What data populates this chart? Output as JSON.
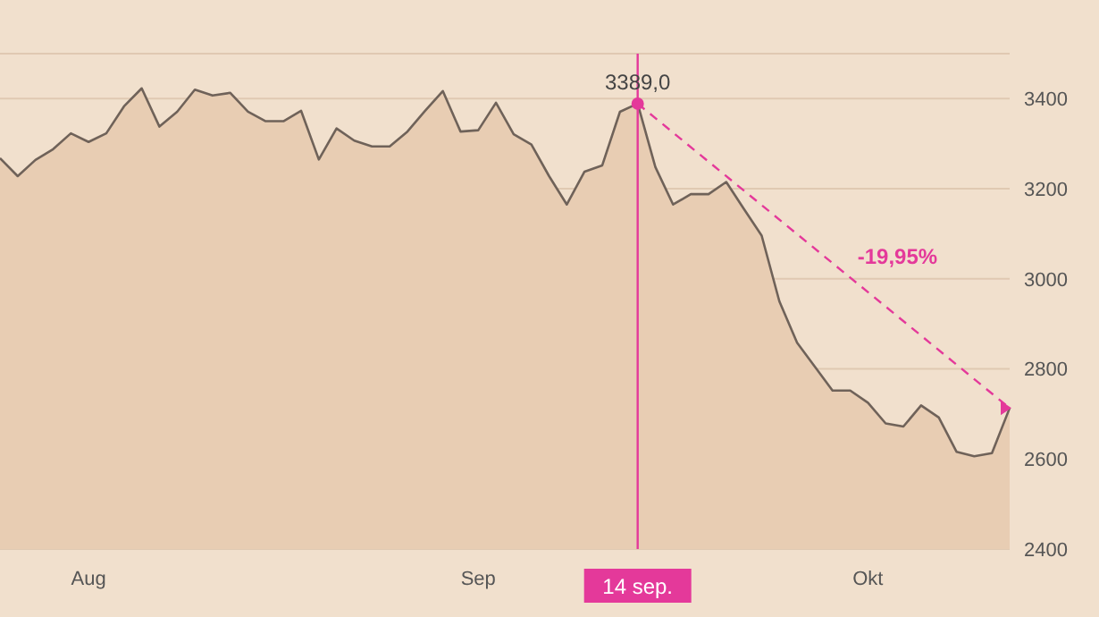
{
  "chart_data": {
    "type": "area",
    "categories": [
      null,
      null,
      null,
      null,
      null,
      "Aug",
      null,
      null,
      null,
      null,
      null,
      null,
      null,
      null,
      null,
      null,
      null,
      null,
      null,
      null,
      null,
      null,
      null,
      null,
      null,
      null,
      null,
      "Sep",
      null,
      null,
      null,
      null,
      null,
      null,
      null,
      null,
      "14 sep.",
      null,
      null,
      null,
      null,
      null,
      null,
      null,
      null,
      null,
      null,
      null,
      null,
      "Okt",
      null,
      null,
      null,
      null,
      null,
      null,
      null,
      null
    ],
    "series": [
      {
        "color": "#e8cdb3",
        "values": [
          3268,
          3228,
          3264,
          3288,
          3323,
          3304,
          3323,
          3383,
          3423,
          3338,
          3371,
          3420,
          3407,
          3413,
          3371,
          3350,
          3350,
          3373,
          3265,
          3334,
          3307,
          3294,
          3294,
          3327,
          3373,
          3417,
          3327,
          3330,
          3391,
          3321,
          3298,
          3228,
          3165,
          3238,
          3252,
          3371,
          3389,
          3248,
          3165,
          3188,
          3188,
          3215,
          3155,
          3096,
          2950,
          2858,
          2805,
          2752,
          2752,
          2725,
          2679,
          2672,
          2719,
          2692,
          2616,
          2606,
          2613,
          2713
        ]
      },
      {
        "type": "line",
        "color": "#e4399a",
        "line_style": "dashed",
        "marker": "circle",
        "values": [
          null,
          null,
          null,
          null,
          null,
          null,
          null,
          null,
          null,
          null,
          null,
          null,
          null,
          null,
          null,
          null,
          null,
          null,
          null,
          null,
          null,
          null,
          null,
          null,
          null,
          null,
          null,
          null,
          null,
          null,
          null,
          null,
          null,
          null,
          null,
          null,
          3389,
          null,
          null,
          null,
          null,
          null,
          null,
          null,
          null,
          null,
          null,
          null,
          null,
          null,
          null,
          null,
          null,
          null,
          null,
          null,
          null,
          2713
        ]
      }
    ],
    "ylim": [
      2400,
      3500
    ],
    "yticks": [
      2400,
      2600,
      2800,
      3000,
      3200,
      3400
    ],
    "grid": "y",
    "ref_lines": [
      {
        "axis": "x",
        "value": "14 sep.",
        "color": "#e4399a"
      }
    ],
    "annotations": [
      {
        "text": "3389,0",
        "x": "14 sep.",
        "y": 3389
      },
      "-19,95%"
    ]
  }
}
